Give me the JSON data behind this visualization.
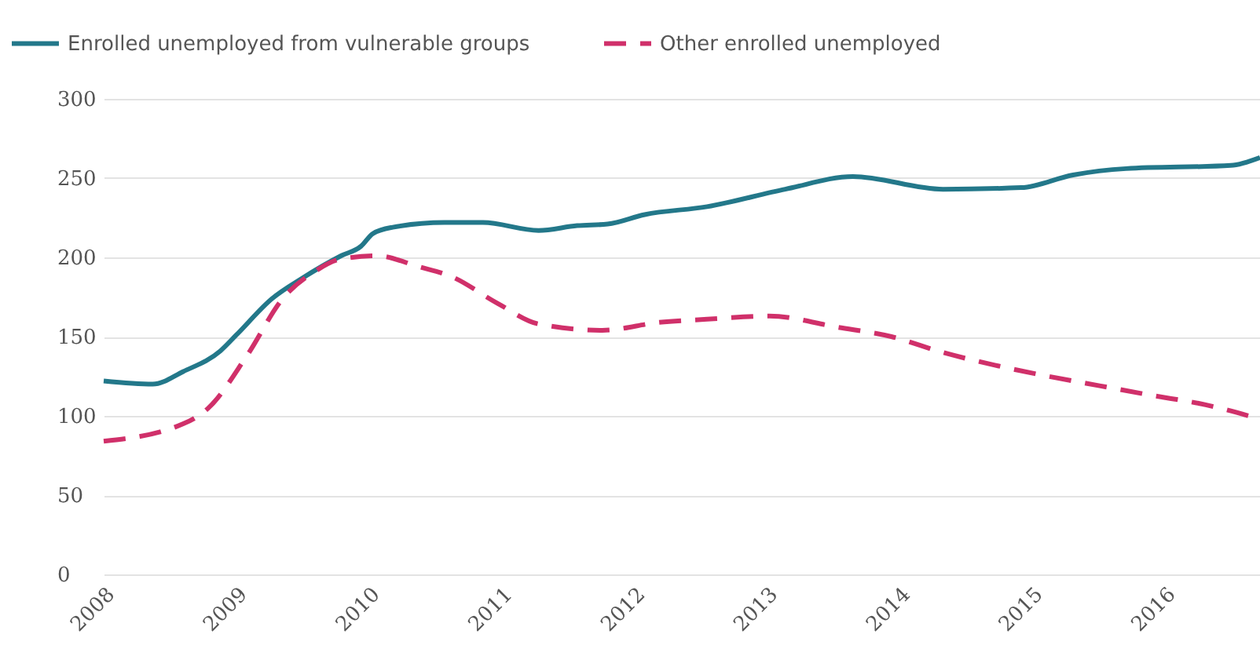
{
  "chart_data": {
    "type": "line",
    "series": [
      {
        "name": "Enrolled unemployed from vulnerable groups",
        "color": "#23788a",
        "line_style": "solid",
        "x": [
          2008.0,
          2008.37,
          2008.6,
          2008.88,
          2009.0,
          2009.27,
          2009.5,
          2009.79,
          2009.94,
          2010.03,
          2010.18,
          2010.57,
          2010.86,
          2011.28,
          2011.57,
          2011.8,
          2012.08,
          2012.55,
          2013.14,
          2013.65,
          2014.33,
          2014.92,
          2015.31,
          2015.71,
          2016.5,
          2016.72
        ],
        "values": [
          122,
          120,
          128,
          141,
          151,
          174,
          187,
          201,
          207,
          215,
          219,
          222,
          222,
          217,
          220,
          221,
          227,
          232,
          243,
          251,
          243,
          244,
          252,
          256,
          258,
          263
        ]
      },
      {
        "name": "Other enrolled unemployed",
        "color": "#d0306a",
        "line_style": "dashed",
        "x": [
          2008.0,
          2008.6,
          2008.79,
          2009.08,
          2009.35,
          2009.59,
          2009.79,
          2010.06,
          2010.38,
          2010.62,
          2010.97,
          2011.28,
          2011.76,
          2012.19,
          2012.55,
          2013.02,
          2013.53,
          2013.94,
          2014.33,
          2014.72,
          2015.12,
          2015.51,
          2015.9,
          2016.31,
          2016.72
        ],
        "values": [
          84,
          95,
          105,
          138,
          174,
          191,
          199,
          201,
          194,
          188,
          171,
          158,
          154,
          159,
          161,
          163,
          156,
          150,
          140,
          132,
          125,
          119,
          113,
          107,
          98
        ]
      }
    ],
    "xlim": [
      2008,
      2016.72
    ],
    "xticks": [
      2008,
      2009,
      2010,
      2011,
      2012,
      2013,
      2014,
      2015,
      2016
    ],
    "ylim": [
      0,
      300
    ],
    "yticks": [
      0,
      50,
      100,
      150,
      200,
      250,
      300
    ],
    "grid": "y",
    "legend": "top left"
  }
}
